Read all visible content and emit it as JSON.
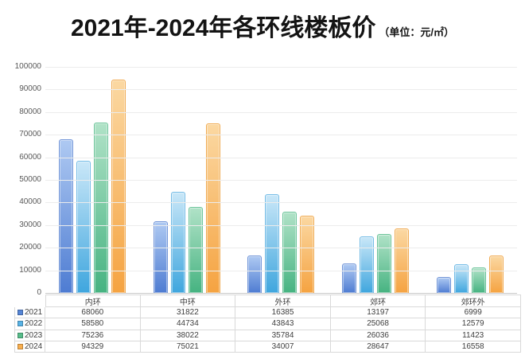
{
  "title": {
    "main": "2021年-2024年各环线楼板价",
    "unit": "（单位：元/㎡）"
  },
  "chart_data": {
    "type": "bar",
    "title": "2021年-2024年各环线楼板价",
    "unit_label": "（单位：元/㎡）",
    "categories": [
      "内环",
      "中环",
      "外环",
      "郊环",
      "郊环外"
    ],
    "series": [
      {
        "name": "2021",
        "values": [
          68060,
          31822,
          16385,
          13197,
          6999
        ],
        "swatch": "#5585d6",
        "gradient_top": "#aec9f2",
        "gradient_bottom": "#4e7cd2",
        "border": "#7396d8"
      },
      {
        "name": "2022",
        "values": [
          58580,
          44734,
          43843,
          25068,
          12579
        ],
        "swatch": "#58b3e6",
        "gradient_top": "#c9e7f8",
        "gradient_bottom": "#3fa6de",
        "border": "#74bce6"
      },
      {
        "name": "2023",
        "values": [
          75236,
          38022,
          35784,
          26036,
          11423
        ],
        "swatch": "#57bd8a",
        "gradient_top": "#b0e2c7",
        "gradient_bottom": "#46b381",
        "border": "#6cc49a"
      },
      {
        "name": "2024",
        "values": [
          94329,
          75021,
          34007,
          28647,
          16558
        ],
        "swatch": "#f8ae4e",
        "gradient_top": "#fbd8a2",
        "gradient_bottom": "#f5a341",
        "border": "#f0ac55"
      }
    ],
    "ylim": [
      0,
      100000
    ],
    "ytick_step": 10000,
    "yticks": [
      "100000",
      "90000",
      "80000",
      "70000",
      "60000",
      "50000",
      "40000",
      "30000",
      "20000",
      "10000",
      "0"
    ],
    "grid": true,
    "legend_position": "table-left",
    "table_attached": true,
    "colors": {
      "gridline": "#ececec",
      "axis_line": "#c9c9c9",
      "table_border": "#d9d9d9",
      "label_text": "#595959",
      "title_text": "#141414"
    }
  }
}
